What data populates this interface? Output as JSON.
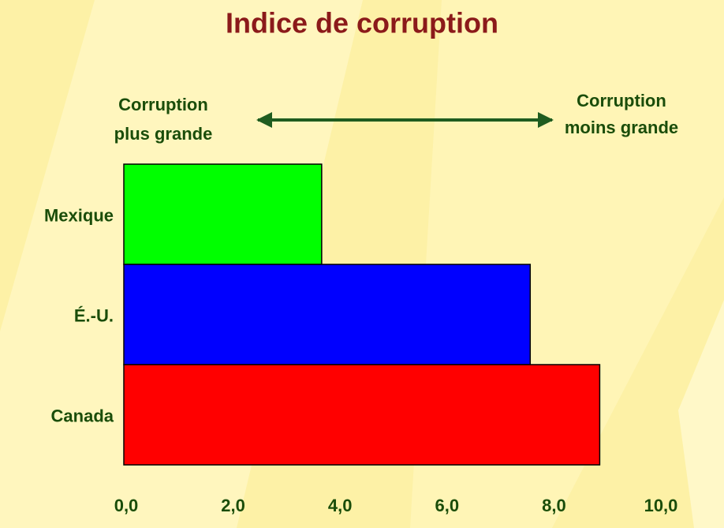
{
  "chart_data": {
    "type": "hbar",
    "title": "Indice de corruption",
    "annotations": [
      {
        "lines": [
          "Corruption",
          "plus grande"
        ]
      },
      {
        "lines": [
          "Corruption",
          "moins grande"
        ]
      }
    ],
    "categories": [
      "Mexique",
      "É.-U.",
      "Canada"
    ],
    "values": [
      3.7,
      7.6,
      8.9
    ],
    "colors": [
      "#00ff00",
      "#0000ff",
      "#ff0000"
    ],
    "xlim": [
      0,
      10
    ],
    "xticks": [
      {
        "value": 0,
        "label": "0,0"
      },
      {
        "value": 2,
        "label": "2,0"
      },
      {
        "value": 4,
        "label": "4,0"
      },
      {
        "value": 6,
        "label": "6,0"
      },
      {
        "value": 8,
        "label": "8,0"
      },
      {
        "value": 10,
        "label": "10,0"
      }
    ],
    "grid": false
  }
}
